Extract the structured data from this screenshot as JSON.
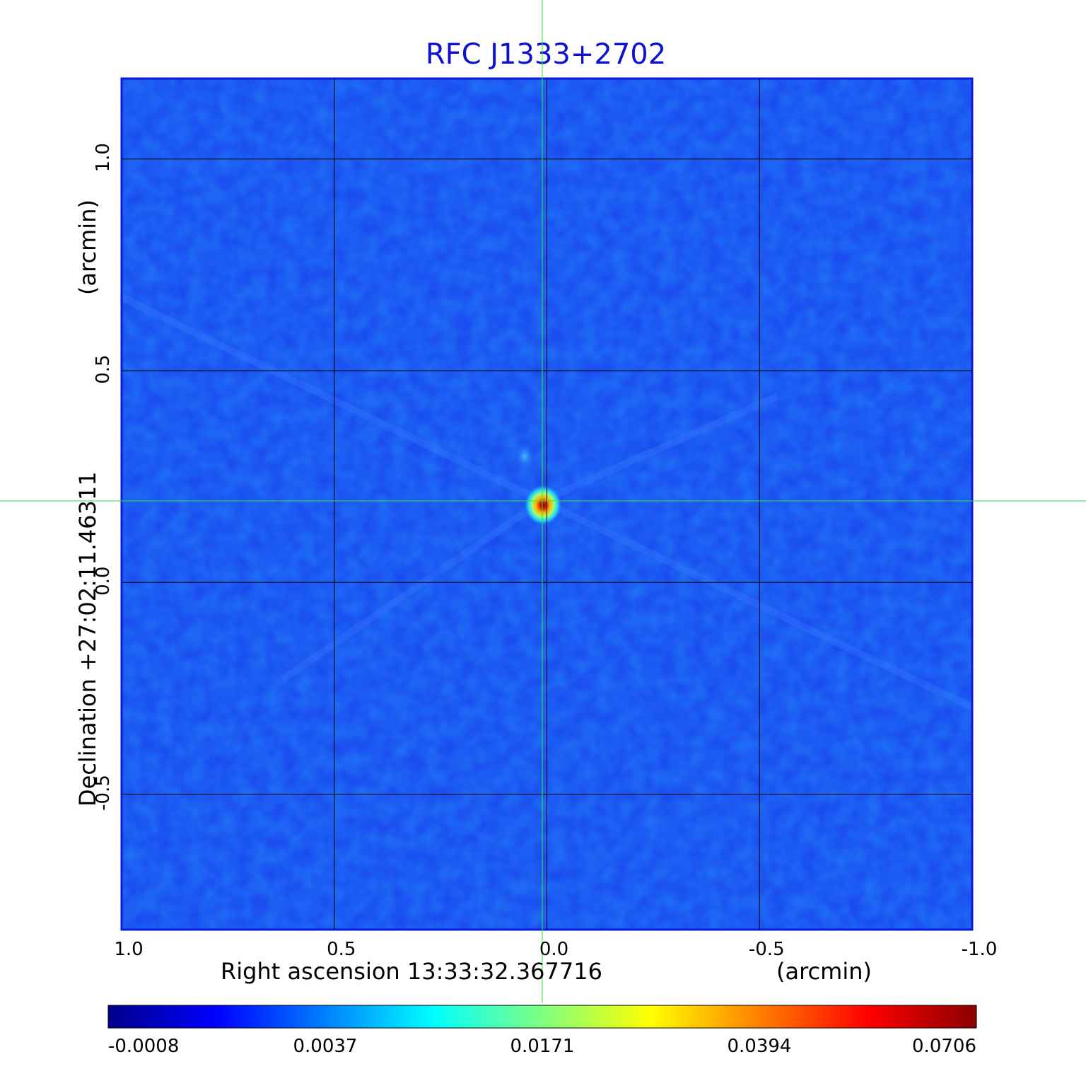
{
  "title": "RFC J1333+2702",
  "x_axis": {
    "label": "Right ascension  13:33:32.367716",
    "unit": "(arcmin)",
    "ticks": [
      "1.0",
      "0.5",
      "0.0",
      "-0.5",
      "-1.0"
    ],
    "range": [
      1.0,
      -1.0
    ]
  },
  "y_axis": {
    "label": "Declination  +27:02:11.46311",
    "unit": "(arcmin)",
    "ticks": [
      "1.0",
      "0.5",
      "0.0",
      "-0.5"
    ],
    "range": [
      -0.82,
      1.19
    ]
  },
  "source": {
    "ra_offset_arcmin": 0.01,
    "dec_offset_arcmin": 0.19
  },
  "colorbar": {
    "ticks": [
      "-0.0008",
      "0.0037",
      "0.0171",
      "0.0394",
      "0.0706"
    ],
    "colormap": [
      "#00008b",
      "#0000ff",
      "#0080ff",
      "#00ffff",
      "#80ff80",
      "#ffff00",
      "#ff8000",
      "#ff0000",
      "#8b0000"
    ]
  },
  "colors": {
    "title": "#1010d0",
    "background_field": "#1a4cf0",
    "grid": "#000000",
    "crosshair": "#2ee82e"
  }
}
